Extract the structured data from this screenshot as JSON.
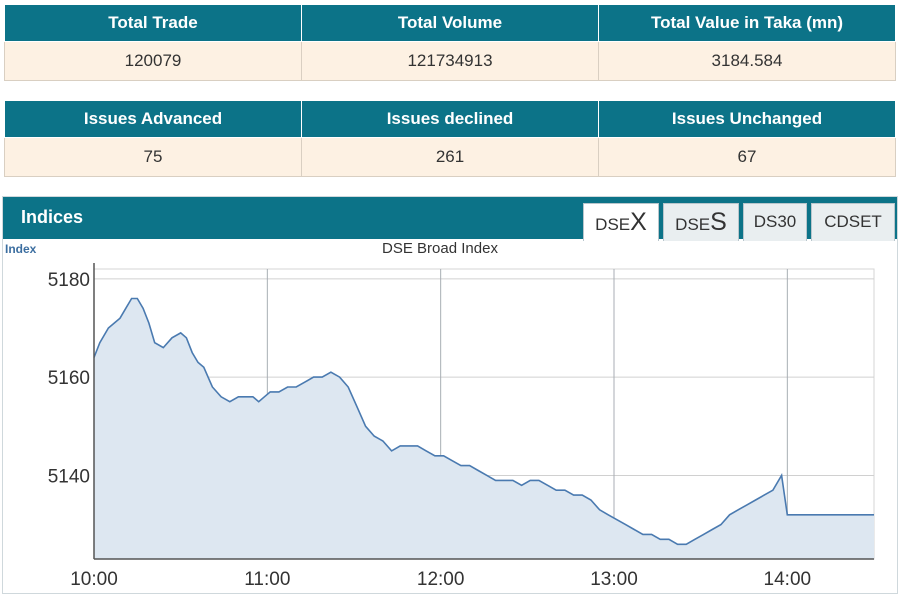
{
  "market_stats": {
    "headers": [
      "Total Trade",
      "Total Volume",
      "Total Value in Taka (mn)"
    ],
    "values": [
      "120079",
      "121734913",
      "3184.584"
    ]
  },
  "issues_stats": {
    "headers": [
      "Issues Advanced",
      "Issues declined",
      "Issues Unchanged"
    ],
    "values": [
      "75",
      "261",
      "67"
    ]
  },
  "indices_panel": {
    "title": "Indices",
    "tabs": [
      {
        "prefix": "DSE",
        "suffix": "X",
        "active": true
      },
      {
        "prefix": "DSE",
        "suffix": "S",
        "active": false
      },
      {
        "label": "DS30",
        "active": false
      },
      {
        "label": "CDSET",
        "active": false
      }
    ]
  },
  "colors": {
    "header_bg": "#0c7388",
    "cell_bg": "#fdf1e3",
    "line": "#4a7ab0",
    "area_fill": "#dde7f1"
  },
  "chart_data": {
    "type": "area",
    "title": "DSE Broad Index",
    "ylabel": "Index",
    "xlabel": "",
    "x_ticks": [
      "10:00",
      "11:00",
      "12:00",
      "13:00",
      "14:00"
    ],
    "y_ticks": [
      5140,
      5160,
      5180
    ],
    "ylim": [
      5123,
      5182
    ],
    "xlim": [
      "10:00",
      "14:30"
    ],
    "grid": true,
    "series": [
      {
        "name": "",
        "x": [
          "10:00",
          "10:02",
          "10:05",
          "10:07",
          "10:09",
          "10:11",
          "10:13",
          "10:15",
          "10:17",
          "10:19",
          "10:21",
          "10:24",
          "10:27",
          "10:30",
          "10:32",
          "10:34",
          "10:36",
          "10:38",
          "10:41",
          "10:44",
          "10:47",
          "10:50",
          "10:53",
          "10:55",
          "10:57",
          "10:59",
          "11:01",
          "11:04",
          "11:07",
          "11:10",
          "11:13",
          "11:16",
          "11:19",
          "11:22",
          "11:25",
          "11:28",
          "11:31",
          "11:34",
          "11:37",
          "11:40",
          "11:43",
          "11:46",
          "11:49",
          "11:52",
          "11:55",
          "11:58",
          "12:01",
          "12:04",
          "12:07",
          "12:10",
          "12:13",
          "12:16",
          "12:19",
          "12:22",
          "12:25",
          "12:28",
          "12:31",
          "12:34",
          "12:37",
          "12:40",
          "12:43",
          "12:46",
          "12:49",
          "12:52",
          "12:55",
          "12:58",
          "13:01",
          "13:04",
          "13:07",
          "13:10",
          "13:13",
          "13:16",
          "13:19",
          "13:22",
          "13:25",
          "13:28",
          "13:31",
          "13:34",
          "13:37",
          "13:40",
          "13:43",
          "13:46",
          "13:49",
          "13:52",
          "13:55",
          "13:58",
          "14:00",
          "14:02",
          "14:04",
          "14:06",
          "14:08",
          "14:10",
          "14:12",
          "14:14",
          "14:16",
          "14:18",
          "14:20",
          "14:22",
          "14:24",
          "14:26",
          "14:28",
          "14:30"
        ],
        "y": [
          5164,
          5167,
          5170,
          5171,
          5172,
          5174,
          5176,
          5176,
          5174,
          5171,
          5167,
          5166,
          5168,
          5169,
          5168,
          5165,
          5163,
          5162,
          5158,
          5156,
          5155,
          5156,
          5156,
          5156,
          5155,
          5156,
          5157,
          5157,
          5158,
          5158,
          5159,
          5160,
          5160,
          5161,
          5160,
          5158,
          5154,
          5150,
          5148,
          5147,
          5145,
          5146,
          5146,
          5146,
          5145,
          5144,
          5144,
          5143,
          5142,
          5142,
          5141,
          5140,
          5139,
          5139,
          5139,
          5138,
          5139,
          5139,
          5138,
          5137,
          5137,
          5136,
          5136,
          5135,
          5133,
          5132,
          5131,
          5130,
          5129,
          5128,
          5128,
          5127,
          5127,
          5126,
          5126,
          5127,
          5128,
          5129,
          5130,
          5132,
          5133,
          5134,
          5135,
          5136,
          5137,
          5140,
          5132,
          5132,
          5132,
          5132,
          5132,
          5132,
          5132,
          5132,
          5132,
          5132,
          5132,
          5132,
          5132,
          5132,
          5132,
          5132
        ]
      }
    ]
  }
}
